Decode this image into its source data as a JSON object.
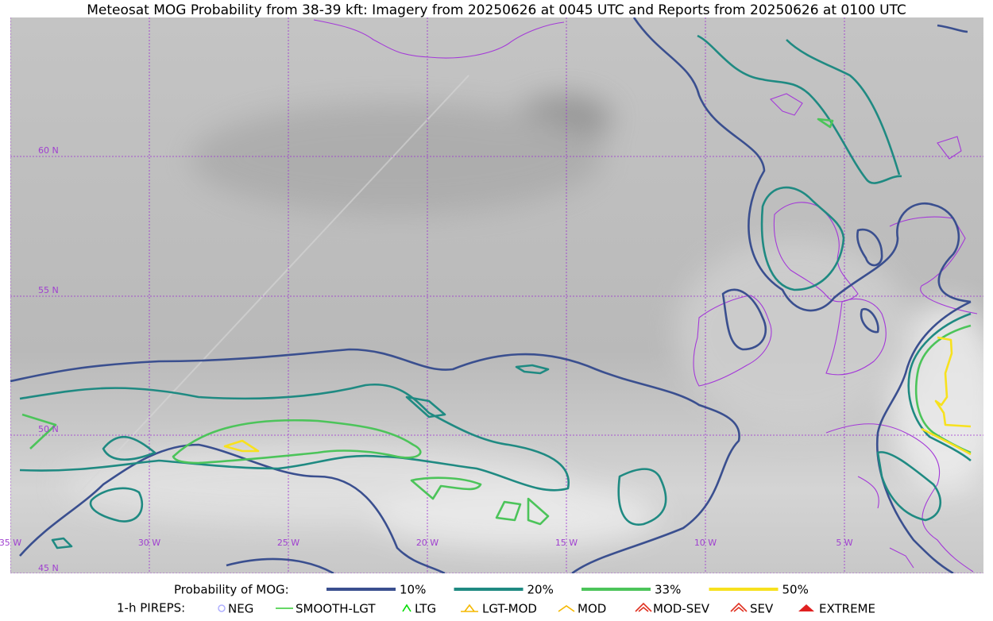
{
  "title": "Meteosat MOG Probability from 38-39 kft: Imagery from 20250626 at 0045 UTC and Reports from 20250626 at 0100 UTC",
  "grid_labels": {
    "lat": [
      "60 N",
      "55 N",
      "50 N",
      "45 N"
    ],
    "lon": [
      "35 W",
      "30 W",
      "25 W",
      "20 W",
      "15 W",
      "10 W",
      "5 W"
    ]
  },
  "legend": {
    "probability": {
      "label": "Probability of MOG:",
      "items": [
        {
          "label": "10%",
          "color": "#3a4f8f"
        },
        {
          "label": "20%",
          "color": "#1f8a82"
        },
        {
          "label": "33%",
          "color": "#4cc45a"
        },
        {
          "label": "50%",
          "color": "#f7e11e"
        }
      ]
    },
    "pireps": {
      "label": "1-h PIREPS:",
      "items": [
        {
          "label": "NEG",
          "color": "#b0b0ff"
        },
        {
          "label": "SMOOTH-LGT",
          "color": "#33cc33"
        },
        {
          "label": "LTG",
          "color": "#00dd00"
        },
        {
          "label": "LGT-MOD",
          "color": "#f5b800"
        },
        {
          "label": "MOD",
          "color": "#f5b800"
        },
        {
          "label": "MOD-SEV",
          "color": "#e03020"
        },
        {
          "label": "SEV",
          "color": "#e03020"
        },
        {
          "label": "EXTREME",
          "color": "#e02020"
        }
      ]
    }
  }
}
